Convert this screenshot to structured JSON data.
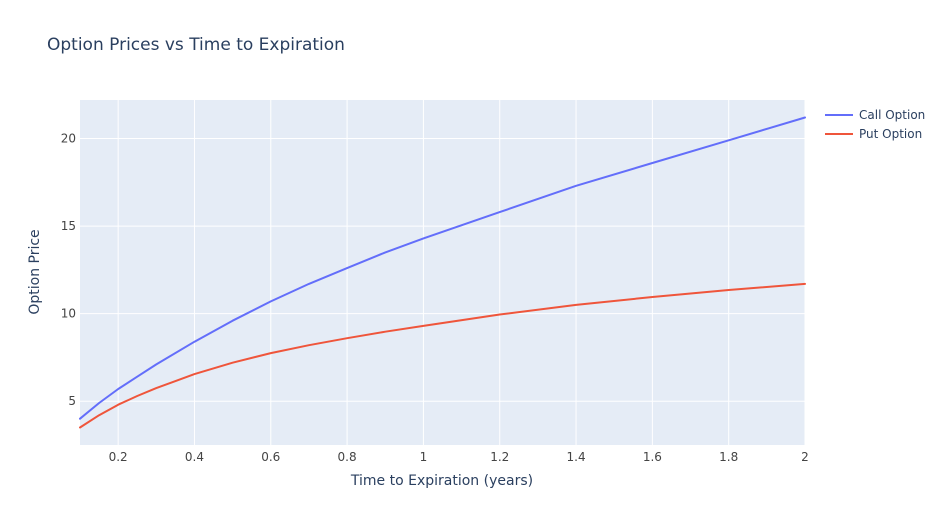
{
  "chart_data": {
    "type": "line",
    "title": "Option Prices vs Time to Expiration",
    "xlabel": "Time to Expiration (years)",
    "ylabel": "Option Price",
    "xlim": [
      0.1,
      2.0
    ],
    "ylim": [
      2.5,
      22.2
    ],
    "xticks": [
      0.2,
      0.4,
      0.6,
      0.8,
      1,
      1.2,
      1.4,
      1.6,
      1.8,
      2
    ],
    "xtick_labels": [
      "0.2",
      "0.4",
      "0.6",
      "0.8",
      "1",
      "1.2",
      "1.4",
      "1.6",
      "1.8",
      "2"
    ],
    "yticks": [
      5,
      10,
      15,
      20
    ],
    "ytick_labels": [
      "5",
      "10",
      "15",
      "20"
    ],
    "grid": true,
    "legend_position": "top-right",
    "x": [
      0.1,
      0.15,
      0.2,
      0.25,
      0.3,
      0.4,
      0.5,
      0.6,
      0.7,
      0.8,
      0.9,
      1.0,
      1.2,
      1.4,
      1.6,
      1.8,
      2.0
    ],
    "series": [
      {
        "name": "Call Option",
        "color": "#636efa",
        "values": [
          4.0,
          4.9,
          5.7,
          6.4,
          7.1,
          8.4,
          9.6,
          10.7,
          11.7,
          12.6,
          13.5,
          14.3,
          15.8,
          17.3,
          18.6,
          19.9,
          21.2
        ]
      },
      {
        "name": "Put Option",
        "color": "#ef553b",
        "values": [
          3.5,
          4.2,
          4.8,
          5.3,
          5.75,
          6.55,
          7.2,
          7.75,
          8.2,
          8.6,
          8.97,
          9.3,
          9.95,
          10.5,
          10.95,
          11.35,
          11.7
        ]
      }
    ]
  },
  "colors": {
    "plot_background": "#e5ecf6",
    "grid": "#ffffff",
    "text": "#2a3f5f",
    "tick_text": "#444444"
  }
}
